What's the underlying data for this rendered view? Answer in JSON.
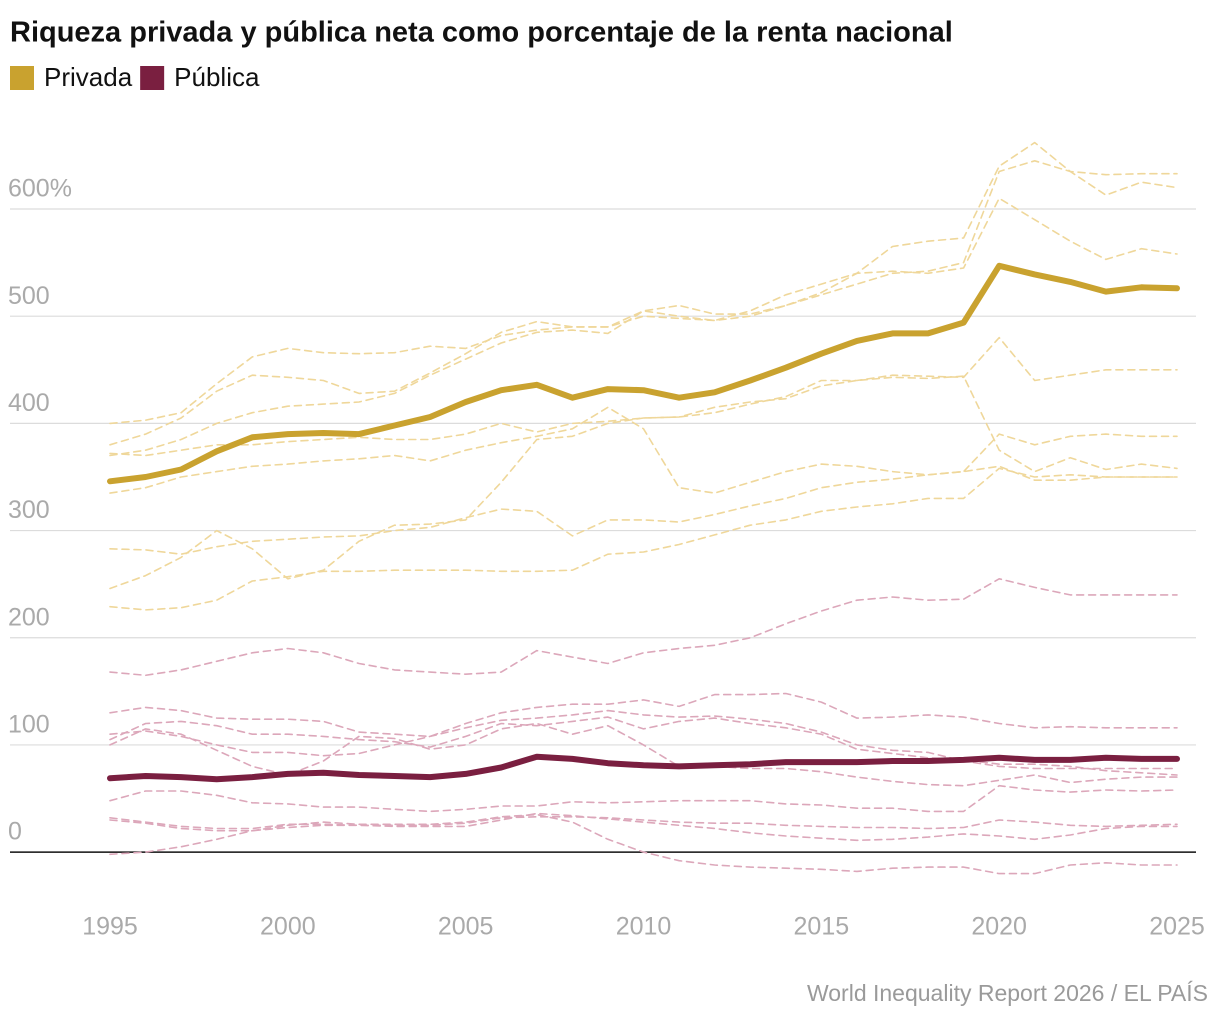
{
  "chart_data": {
    "type": "line",
    "title": "Riqueza privada y pública neta como porcentaje de la renta nacional",
    "source": "World Inequality Report 2026 / EL PAÍS",
    "x": [
      1995,
      1996,
      1997,
      1998,
      1999,
      2000,
      2001,
      2002,
      2003,
      2004,
      2005,
      2006,
      2007,
      2008,
      2009,
      2010,
      2011,
      2012,
      2013,
      2014,
      2015,
      2016,
      2017,
      2018,
      2019,
      2020,
      2021,
      2022,
      2023,
      2024,
      2025
    ],
    "xlim": [
      1995,
      2025
    ],
    "xticks": [
      1995,
      2000,
      2005,
      2010,
      2015,
      2020,
      2025
    ],
    "ylim": [
      -40,
      670
    ],
    "yticks": [
      0,
      100,
      200,
      300,
      400,
      500,
      {
        "value": 600,
        "label": "600%"
      }
    ],
    "grid": true,
    "series": [
      {
        "name": "Privada",
        "color": "#c9a22f",
        "values": [
          346,
          350,
          357,
          374,
          387,
          390,
          391,
          390,
          398,
          406,
          420,
          431,
          436,
          424,
          432,
          431,
          424,
          429,
          440,
          452,
          465,
          477,
          484,
          484,
          494,
          547,
          539,
          532,
          523,
          527,
          526
        ]
      },
      {
        "name": "Pública",
        "color": "#7a1f40",
        "values": [
          69,
          71,
          70,
          68,
          70,
          73,
          74,
          72,
          71,
          70,
          73,
          79,
          89,
          87,
          83,
          81,
          80,
          81,
          82,
          84,
          84,
          84,
          85,
          85,
          86,
          88,
          86,
          86,
          88,
          87,
          87
        ]
      }
    ],
    "background_series": [
      {
        "color": "#efd79a",
        "values": [
          380,
          390,
          405,
          430,
          445,
          443,
          440,
          428,
          430,
          447,
          465,
          485,
          495,
          490,
          490,
          500,
          498,
          496,
          500,
          510,
          520,
          530,
          540,
          542,
          550,
          635,
          645,
          635,
          632,
          633,
          633
        ]
      },
      {
        "color": "#efd79a",
        "values": [
          400,
          403,
          410,
          437,
          462,
          470,
          466,
          465,
          466,
          472,
          470,
          482,
          487,
          490,
          490,
          505,
          510,
          502,
          502,
          510,
          522,
          540,
          565,
          570,
          573,
          640,
          662,
          635,
          613,
          625,
          620
        ]
      },
      {
        "color": "#efd79a",
        "values": [
          370,
          375,
          385,
          400,
          410,
          416,
          418,
          420,
          428,
          445,
          460,
          475,
          485,
          487,
          484,
          505,
          500,
          496,
          505,
          520,
          530,
          540,
          542,
          540,
          545,
          610,
          590,
          570,
          553,
          563,
          558
        ]
      },
      {
        "color": "#efd79a",
        "values": [
          372,
          370,
          375,
          380,
          380,
          383,
          385,
          387,
          385,
          385,
          390,
          400,
          392,
          400,
          402,
          405,
          406,
          410,
          418,
          425,
          440,
          440,
          445,
          444,
          443,
          480,
          440,
          445,
          450,
          450,
          450
        ]
      },
      {
        "color": "#efd79a",
        "values": [
          335,
          340,
          350,
          355,
          360,
          362,
          365,
          367,
          370,
          365,
          375,
          382,
          388,
          395,
          415,
          395,
          340,
          335,
          345,
          355,
          362,
          360,
          355,
          352,
          355,
          390,
          380,
          388,
          390,
          388,
          388
        ]
      },
      {
        "color": "#efd79a",
        "values": [
          246,
          258,
          275,
          300,
          283,
          255,
          263,
          290,
          305,
          306,
          310,
          345,
          385,
          388,
          400,
          405,
          406,
          415,
          420,
          423,
          435,
          440,
          443,
          442,
          444,
          375,
          355,
          368,
          357,
          362,
          358
        ]
      },
      {
        "color": "#efd79a",
        "values": [
          283,
          282,
          278,
          285,
          290,
          292,
          294,
          295,
          300,
          303,
          312,
          320,
          318,
          295,
          310,
          310,
          308,
          315,
          323,
          330,
          340,
          345,
          348,
          352,
          355,
          360,
          347,
          347,
          350,
          350,
          350
        ]
      },
      {
        "color": "#efd79a",
        "values": [
          229,
          226,
          228,
          235,
          253,
          257,
          262,
          262,
          263,
          263,
          263,
          262,
          262,
          263,
          278,
          280,
          287,
          296,
          305,
          310,
          318,
          322,
          325,
          330,
          330,
          358,
          350,
          352,
          350,
          350,
          350
        ]
      },
      {
        "color": "#dca7ba",
        "values": [
          168,
          165,
          170,
          178,
          186,
          190,
          186,
          176,
          170,
          168,
          166,
          168,
          188,
          182,
          176,
          186,
          190,
          193,
          200,
          213,
          225,
          235,
          238,
          235,
          236,
          255,
          247,
          240,
          240,
          240,
          240
        ]
      },
      {
        "color": "#dca7ba",
        "values": [
          130,
          135,
          132,
          125,
          124,
          124,
          122,
          112,
          110,
          108,
          120,
          130,
          135,
          138,
          138,
          142,
          136,
          147,
          147,
          148,
          140,
          125,
          126,
          128,
          126,
          120,
          116,
          117,
          116,
          116,
          116
        ]
      },
      {
        "color": "#dca7ba",
        "values": [
          110,
          113,
          108,
          100,
          93,
          93,
          90,
          92,
          100,
          108,
          116,
          123,
          125,
          128,
          132,
          128,
          126,
          127,
          124,
          120,
          112,
          100,
          95,
          93,
          85,
          80,
          78,
          78,
          78,
          78,
          78
        ]
      },
      {
        "color": "#dca7ba",
        "values": [
          105,
          120,
          122,
          118,
          110,
          110,
          108,
          105,
          103,
          98,
          108,
          120,
          118,
          122,
          126,
          115,
          122,
          125,
          120,
          116,
          110,
          96,
          92,
          88,
          86,
          82,
          82,
          80,
          76,
          74,
          72
        ]
      },
      {
        "color": "#dca7ba",
        "values": [
          100,
          115,
          110,
          95,
          80,
          72,
          85,
          108,
          106,
          96,
          100,
          115,
          120,
          110,
          118,
          100,
          80,
          80,
          78,
          78,
          75,
          70,
          66,
          63,
          62,
          67,
          72,
          65,
          68,
          70,
          70
        ]
      },
      {
        "color": "#dca7ba",
        "values": [
          48,
          57,
          57,
          53,
          46,
          45,
          42,
          42,
          40,
          38,
          40,
          43,
          43,
          47,
          46,
          47,
          48,
          48,
          48,
          45,
          44,
          41,
          41,
          38,
          38,
          62,
          58,
          56,
          58,
          57,
          58
        ]
      },
      {
        "color": "#dca7ba",
        "values": [
          32,
          28,
          24,
          22,
          22,
          26,
          26,
          25,
          24,
          24,
          24,
          30,
          36,
          34,
          31,
          28,
          25,
          22,
          18,
          15,
          13,
          11,
          12,
          14,
          17,
          15,
          12,
          16,
          22,
          24,
          24
        ]
      },
      {
        "color": "#dca7ba",
        "values": [
          -2,
          0,
          5,
          12,
          20,
          25,
          28,
          26,
          26,
          26,
          28,
          33,
          35,
          28,
          12,
          0,
          -8,
          -12,
          -14,
          -15,
          -16,
          -18,
          -15,
          -14,
          -14,
          -20,
          -20,
          -12,
          -10,
          -12,
          -12
        ]
      },
      {
        "color": "#dca7ba",
        "values": [
          30,
          27,
          22,
          20,
          20,
          23,
          25,
          25,
          25,
          25,
          27,
          32,
          33,
          33,
          32,
          30,
          28,
          27,
          27,
          25,
          24,
          23,
          23,
          22,
          23,
          30,
          28,
          25,
          24,
          25,
          26
        ]
      }
    ]
  }
}
